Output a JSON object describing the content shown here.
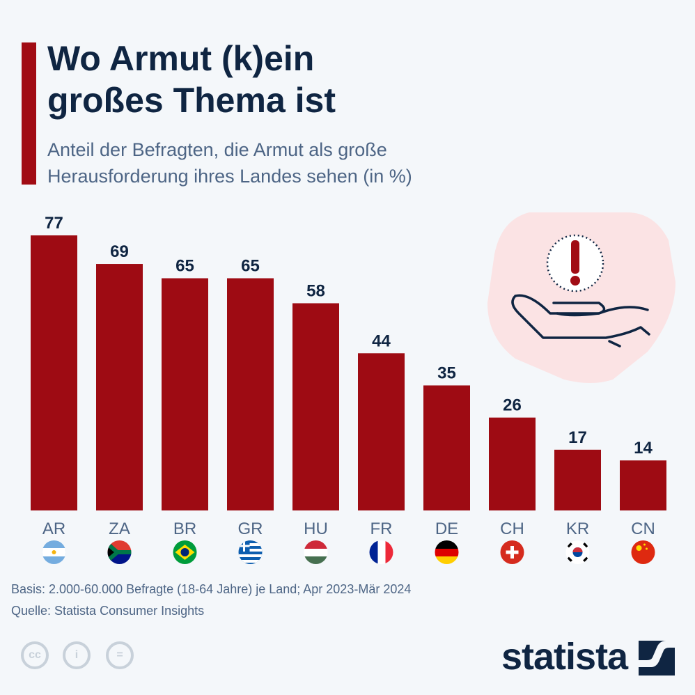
{
  "header": {
    "title_line1": "Wo Armut (k)ein",
    "title_line2": "großes Thema ist",
    "subtitle_line1": "Anteil der Befragten, die Armut als große",
    "subtitle_line2": "Herausforderung ihres Landes sehen (in %)"
  },
  "chart_data": {
    "type": "bar",
    "title": "Wo Armut (k)ein großes Thema ist",
    "ylabel": "Anteil der Befragten (in %)",
    "xlabel": "",
    "ylim": [
      0,
      80
    ],
    "categories": [
      "AR",
      "ZA",
      "BR",
      "GR",
      "HU",
      "FR",
      "DE",
      "CH",
      "KR",
      "CN"
    ],
    "values": [
      77,
      69,
      65,
      65,
      58,
      44,
      35,
      26,
      17,
      14
    ],
    "bar_color": "#9e0b13"
  },
  "footer": {
    "basis": "Basis: 2.000-60.000 Befragte (18-64 Jahre) je Land; Apr 2023-Mär 2024",
    "source": "Quelle: Statista Consumer Insights",
    "logo": "statista"
  }
}
